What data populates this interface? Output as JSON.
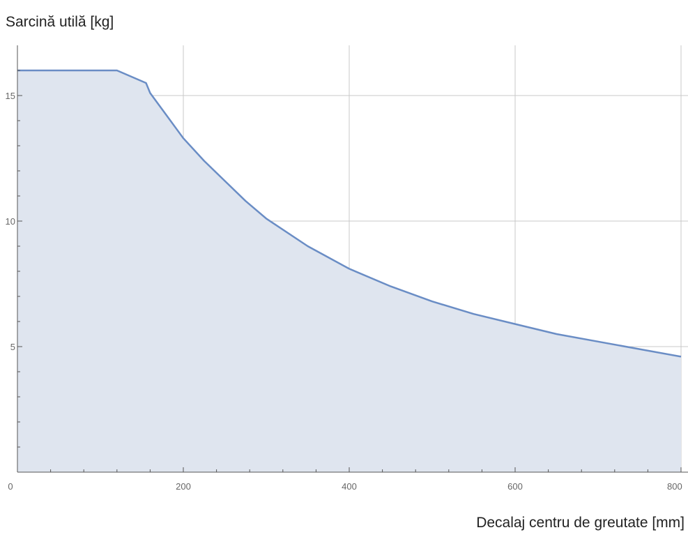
{
  "chart_data": {
    "type": "area",
    "title": "",
    "ylabel": "Sarcină utilă [kg]",
    "xlabel": "Decalaj centru de greutate [mm]",
    "xlim": [
      0,
      800
    ],
    "ylim": [
      0,
      17
    ],
    "x_ticks": [
      0,
      200,
      400,
      600,
      800
    ],
    "y_ticks": [
      5,
      10,
      15
    ],
    "grid": true,
    "colors": {
      "line": "#6a8dc5",
      "fill": "#dfe5ef",
      "grid": "#c8c8c8",
      "axis": "#555555"
    },
    "series": [
      {
        "x": [
          0,
          120,
          155,
          160,
          180,
          200,
          225,
          250,
          275,
          300,
          350,
          400,
          450,
          500,
          550,
          600,
          650,
          700,
          750,
          800
        ],
        "y": [
          16.0,
          16.0,
          15.5,
          15.1,
          14.2,
          13.3,
          12.4,
          11.6,
          10.8,
          10.1,
          9.0,
          8.1,
          7.4,
          6.8,
          6.3,
          5.9,
          5.5,
          5.2,
          4.9,
          4.6
        ]
      }
    ]
  }
}
